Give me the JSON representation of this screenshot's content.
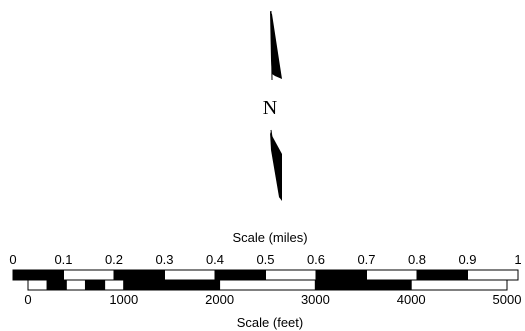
{
  "north_arrow": {
    "label": "N",
    "icon": "north-arrow-icon"
  },
  "miles_scale": {
    "title": "Scale (miles)",
    "ticks": [
      0,
      0.1,
      0.2,
      0.3,
      0.4,
      0.5,
      0.6,
      0.7,
      0.8,
      0.9,
      1
    ],
    "tick_labels": [
      "0",
      "0.1",
      "0.2",
      "0.3",
      "0.4",
      "0.5",
      "0.6",
      "0.7",
      "0.8",
      "0.9",
      "1"
    ],
    "min": 0,
    "max": 1,
    "segments": [
      {
        "from": 0,
        "to": 0.1,
        "fill": "black"
      },
      {
        "from": 0.1,
        "to": 0.2,
        "fill": "white"
      },
      {
        "from": 0.2,
        "to": 0.3,
        "fill": "black"
      },
      {
        "from": 0.3,
        "to": 0.4,
        "fill": "white"
      },
      {
        "from": 0.4,
        "to": 0.5,
        "fill": "black"
      },
      {
        "from": 0.5,
        "to": 0.6,
        "fill": "white"
      },
      {
        "from": 0.6,
        "to": 0.7,
        "fill": "black"
      },
      {
        "from": 0.7,
        "to": 0.8,
        "fill": "white"
      },
      {
        "from": 0.8,
        "to": 0.9,
        "fill": "black"
      },
      {
        "from": 0.9,
        "to": 1,
        "fill": "white"
      }
    ]
  },
  "feet_scale": {
    "title": "Scale (feet)",
    "ticks": [
      0,
      1000,
      2000,
      3000,
      4000,
      5000
    ],
    "tick_labels": [
      "0",
      "1000",
      "2000",
      "3000",
      "4000",
      "5000"
    ],
    "min": 0,
    "max": 5000,
    "segments": [
      {
        "from": 0,
        "to": 200,
        "fill": "white"
      },
      {
        "from": 200,
        "to": 400,
        "fill": "black"
      },
      {
        "from": 400,
        "to": 600,
        "fill": "white"
      },
      {
        "from": 600,
        "to": 800,
        "fill": "black"
      },
      {
        "from": 800,
        "to": 1000,
        "fill": "white"
      },
      {
        "from": 1000,
        "to": 2000,
        "fill": "black"
      },
      {
        "from": 2000,
        "to": 3000,
        "fill": "white"
      },
      {
        "from": 3000,
        "to": 4000,
        "fill": "black"
      },
      {
        "from": 4000,
        "to": 5000,
        "fill": "white"
      }
    ]
  },
  "colors": {
    "ink": "#000000",
    "paper": "#ffffff"
  }
}
